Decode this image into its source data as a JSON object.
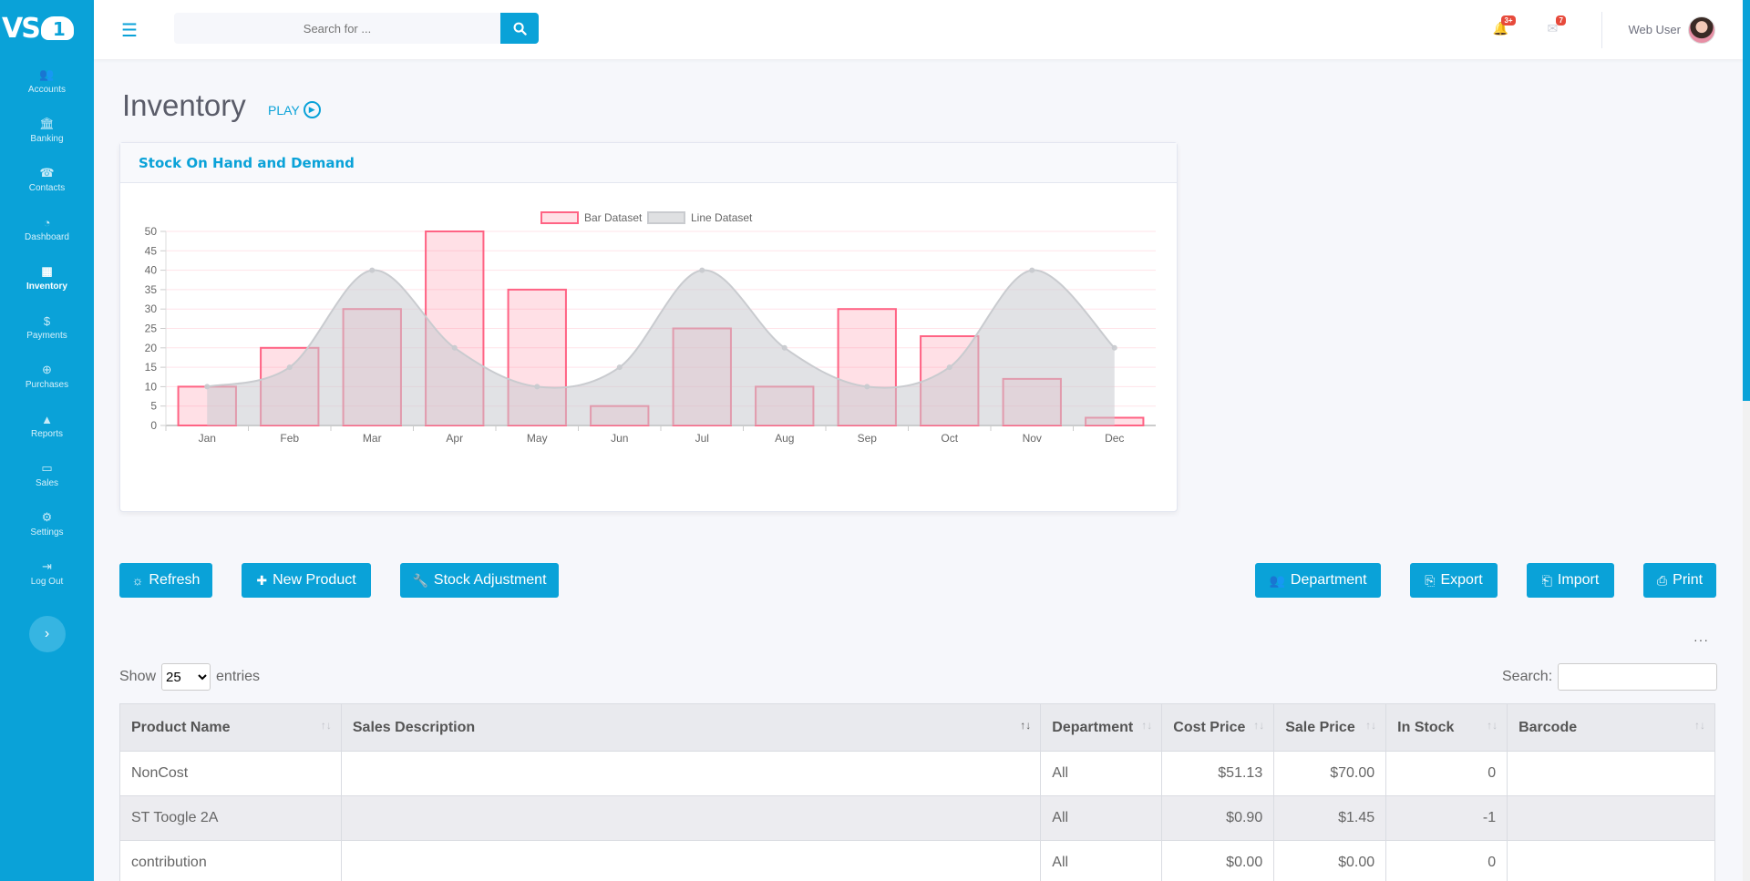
{
  "app": {
    "logo_text": "VS",
    "logo_digit": "1"
  },
  "sidebar": {
    "items": [
      {
        "label": "Accounts",
        "icon": "users-icon",
        "glyph": "👥"
      },
      {
        "label": "Banking",
        "icon": "bank-icon",
        "glyph": "🏛"
      },
      {
        "label": "Contacts",
        "icon": "phone-icon",
        "glyph": "☎"
      },
      {
        "label": "Dashboard",
        "icon": "gauge-icon",
        "glyph": "◔"
      },
      {
        "label": "Inventory",
        "icon": "boxes-icon",
        "glyph": "▦"
      },
      {
        "label": "Payments",
        "icon": "dollar-icon",
        "glyph": "$"
      },
      {
        "label": "Purchases",
        "icon": "plus-circle-icon",
        "glyph": "⊕"
      },
      {
        "label": "Reports",
        "icon": "chart-area-icon",
        "glyph": "▲"
      },
      {
        "label": "Sales",
        "icon": "credit-card-icon",
        "glyph": "▭"
      },
      {
        "label": "Settings",
        "icon": "gear-icon",
        "glyph": "⚙"
      },
      {
        "label": "Log Out",
        "icon": "sign-out-icon",
        "glyph": "⇥"
      }
    ],
    "active": "Inventory",
    "collapse_glyph": "›"
  },
  "topbar": {
    "search_placeholder": "Search for ...",
    "alerts_badge": "3+",
    "messages_badge": "7",
    "user_name": "Web User"
  },
  "page": {
    "title": "Inventory",
    "play_label": "PLAY"
  },
  "chart_card": {
    "title": "Stock On Hand and Demand"
  },
  "chart_data": {
    "type": "bar",
    "categories": [
      "Jan",
      "Feb",
      "Mar",
      "Apr",
      "May",
      "Jun",
      "Jul",
      "Aug",
      "Sep",
      "Oct",
      "Nov",
      "Dec"
    ],
    "series": [
      {
        "name": "Bar Dataset",
        "type": "bar",
        "values": [
          10,
          20,
          30,
          50,
          35,
          5,
          25,
          10,
          30,
          23,
          12,
          2
        ],
        "color": "#ff6384"
      },
      {
        "name": "Line Dataset",
        "type": "area",
        "values": [
          10,
          15,
          40,
          20,
          10,
          15,
          40,
          20,
          10,
          15,
          40,
          20
        ],
        "color": "#c9cbcf"
      }
    ],
    "ylim": [
      0,
      50
    ],
    "yticks": [
      0,
      5,
      10,
      15,
      20,
      25,
      30,
      35,
      40,
      45,
      50
    ],
    "legend": "top",
    "grid": true
  },
  "actions": {
    "refresh": "Refresh",
    "new_product": "New Product",
    "stock_adjustment": "Stock Adjustment",
    "department": "Department",
    "export": "Export",
    "import": "Import",
    "print": "Print"
  },
  "table": {
    "show_label": "Show",
    "entries_label": "entries",
    "page_size": "25",
    "search_label": "Search:",
    "columns": [
      "Product Name",
      "Sales Description",
      "Department",
      "Cost Price",
      "Sale Price",
      "In Stock",
      "Barcode"
    ],
    "rows": [
      [
        "NonCost",
        "",
        "All",
        "$51.13",
        "$70.00",
        "0",
        ""
      ],
      [
        "ST Toogle 2A",
        "",
        "All",
        "$0.90",
        "$1.45",
        "-1",
        ""
      ],
      [
        "contribution",
        "",
        "All",
        "$0.00",
        "$0.00",
        "0",
        ""
      ]
    ]
  }
}
